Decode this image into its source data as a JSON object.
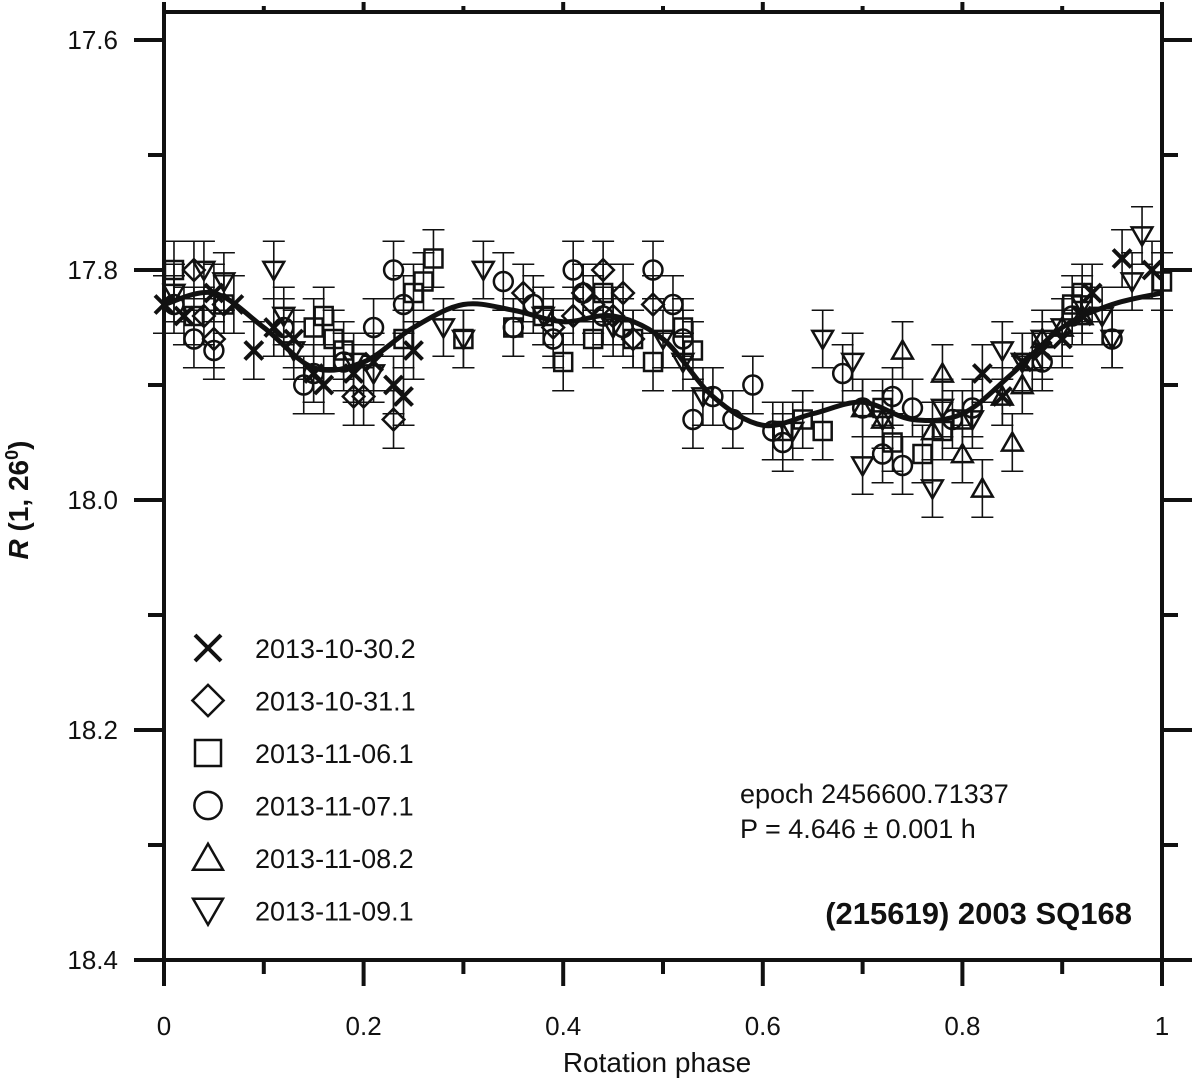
{
  "chart_data": {
    "type": "scatter",
    "title": "(215619) 2003 SQ168",
    "xlabel": "Rotation phase",
    "ylabel": "R (1, 26°)",
    "ylabel_parts": {
      "italic": "R",
      "rest": " (1, 26",
      "sup": "0",
      "close": ")"
    },
    "xlim": [
      0,
      1
    ],
    "ylim": [
      17.6,
      18.4
    ],
    "y_inverted": true,
    "x_ticks": [
      0,
      0.2,
      0.4,
      0.6,
      0.8,
      1
    ],
    "x_tick_labels": [
      "0",
      "0.2",
      "0.4",
      "0.6",
      "0.8",
      "1"
    ],
    "y_ticks": [
      17.6,
      17.8,
      18.0,
      18.2,
      18.4
    ],
    "y_tick_labels": [
      "17.6",
      "17.8",
      "18.0",
      "18.2",
      "18.4"
    ],
    "grid": false,
    "legend_position": "bottom-left",
    "annotations": [
      "epoch 2456600.71337",
      "P = 4.646 ± 0.001 h"
    ],
    "error_bar": 0.025,
    "series": [
      {
        "name": "2013-10-30.2",
        "marker": "x",
        "x": [
          0.0,
          0.02,
          0.05,
          0.07,
          0.09,
          0.11,
          0.13,
          0.15,
          0.16,
          0.19,
          0.21,
          0.23,
          0.24,
          0.25,
          0.82,
          0.84,
          0.86,
          0.88,
          0.9,
          0.92,
          0.93,
          0.96,
          0.99
        ],
        "y": [
          17.83,
          17.84,
          17.82,
          17.83,
          17.87,
          17.85,
          17.86,
          17.89,
          17.9,
          17.89,
          17.88,
          17.9,
          17.91,
          17.87,
          17.89,
          17.91,
          17.88,
          17.87,
          17.86,
          17.84,
          17.82,
          17.79,
          17.8
        ]
      },
      {
        "name": "2013-10-31.1",
        "marker": "diamond",
        "x": [
          0.03,
          0.04,
          0.05,
          0.06,
          0.19,
          0.2,
          0.23,
          0.36,
          0.39,
          0.41,
          0.42,
          0.43,
          0.44,
          0.45,
          0.46,
          0.47,
          0.49
        ],
        "y": [
          17.8,
          17.84,
          17.86,
          17.83,
          17.91,
          17.91,
          17.93,
          17.82,
          17.85,
          17.84,
          17.82,
          17.83,
          17.8,
          17.84,
          17.82,
          17.86,
          17.83
        ]
      },
      {
        "name": "2013-11-06.1",
        "marker": "square",
        "x": [
          0.01,
          0.03,
          0.06,
          0.15,
          0.16,
          0.17,
          0.18,
          0.24,
          0.25,
          0.26,
          0.27,
          0.3,
          0.35,
          0.38,
          0.4,
          0.43,
          0.44,
          0.47,
          0.49,
          0.52,
          0.53,
          0.62,
          0.64,
          0.66,
          0.72,
          0.73,
          0.76,
          0.78,
          0.8,
          0.91,
          0.92,
          1.0
        ],
        "y": [
          17.8,
          17.84,
          17.83,
          17.85,
          17.84,
          17.86,
          17.87,
          17.86,
          17.82,
          17.81,
          17.79,
          17.86,
          17.85,
          17.84,
          17.88,
          17.86,
          17.82,
          17.86,
          17.88,
          17.85,
          17.87,
          17.94,
          17.93,
          17.94,
          17.92,
          17.95,
          17.96,
          17.94,
          17.93,
          17.83,
          17.82,
          17.81
        ]
      },
      {
        "name": "2013-11-07.1",
        "marker": "circle",
        "x": [
          0.01,
          0.03,
          0.05,
          0.12,
          0.14,
          0.15,
          0.18,
          0.21,
          0.23,
          0.24,
          0.34,
          0.35,
          0.37,
          0.39,
          0.41,
          0.42,
          0.44,
          0.46,
          0.49,
          0.51,
          0.52,
          0.53,
          0.55,
          0.57,
          0.59,
          0.61,
          0.62,
          0.68,
          0.7,
          0.72,
          0.73,
          0.74,
          0.75,
          0.79,
          0.81,
          0.88,
          0.91,
          0.95
        ],
        "y": [
          17.83,
          17.86,
          17.87,
          17.85,
          17.9,
          17.89,
          17.88,
          17.85,
          17.8,
          17.83,
          17.81,
          17.85,
          17.83,
          17.86,
          17.8,
          17.82,
          17.84,
          17.85,
          17.8,
          17.83,
          17.86,
          17.93,
          17.91,
          17.93,
          17.9,
          17.94,
          17.95,
          17.89,
          17.92,
          17.96,
          17.91,
          17.97,
          17.92,
          17.93,
          17.92,
          17.88,
          17.84,
          17.86
        ]
      },
      {
        "name": "2013-11-08.2",
        "marker": "triangle-up",
        "x": [
          0.7,
          0.72,
          0.74,
          0.77,
          0.78,
          0.8,
          0.82,
          0.84,
          0.85,
          0.86,
          0.87,
          0.88,
          0.9,
          0.92
        ],
        "y": [
          17.92,
          17.93,
          17.87,
          17.94,
          17.89,
          17.96,
          17.99,
          17.91,
          17.95,
          17.9,
          17.88,
          17.86,
          17.85,
          17.84
        ]
      },
      {
        "name": "2013-11-09.1",
        "marker": "triangle-down",
        "x": [
          0.01,
          0.04,
          0.06,
          0.11,
          0.12,
          0.13,
          0.19,
          0.21,
          0.28,
          0.3,
          0.32,
          0.38,
          0.45,
          0.5,
          0.52,
          0.54,
          0.63,
          0.66,
          0.69,
          0.7,
          0.72,
          0.77,
          0.78,
          0.81,
          0.84,
          0.86,
          0.88,
          0.9,
          0.92,
          0.94,
          0.95,
          0.97,
          0.98
        ],
        "y": [
          17.82,
          17.8,
          17.81,
          17.8,
          17.84,
          17.87,
          17.88,
          17.89,
          17.85,
          17.86,
          17.8,
          17.84,
          17.85,
          17.86,
          17.88,
          17.91,
          17.94,
          17.86,
          17.88,
          17.97,
          17.93,
          17.99,
          17.92,
          17.93,
          17.87,
          17.88,
          17.86,
          17.85,
          17.83,
          17.84,
          17.86,
          17.81,
          17.77
        ]
      }
    ],
    "fit": {
      "x": [
        0,
        0.05,
        0.1,
        0.15,
        0.2,
        0.25,
        0.3,
        0.35,
        0.4,
        0.45,
        0.5,
        0.55,
        0.6,
        0.65,
        0.7,
        0.75,
        0.8,
        0.85,
        0.9,
        0.95,
        1.0
      ],
      "y": [
        17.83,
        17.82,
        17.85,
        17.885,
        17.88,
        17.85,
        17.83,
        17.835,
        17.845,
        17.84,
        17.86,
        17.91,
        17.935,
        17.925,
        17.915,
        17.93,
        17.925,
        17.89,
        17.85,
        17.83,
        17.82
      ]
    }
  }
}
